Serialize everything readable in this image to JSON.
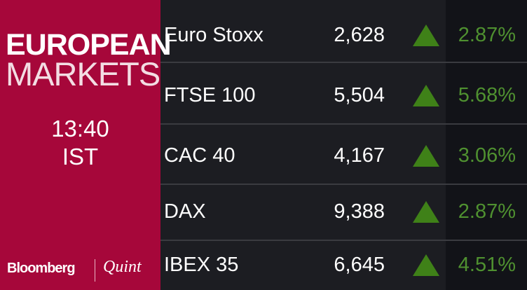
{
  "header": {
    "title_line1": "EUROPEAN",
    "title_line2": "MARKETS",
    "time": "13:40",
    "timezone": "IST"
  },
  "brand": {
    "name1": "Bloomberg",
    "name2": "Quint"
  },
  "table": {
    "rows": [
      [
        "Euro Stoxx",
        "2,628",
        "2.87%"
      ],
      [
        "FTSE 100",
        "5,504",
        "5.68%"
      ],
      [
        "CAC 40",
        "4,167",
        "3.06%"
      ],
      [
        "DAX",
        "9,388",
        "2.87%"
      ],
      [
        "IBEX 35",
        "6,645",
        "4.51%"
      ]
    ]
  }
}
